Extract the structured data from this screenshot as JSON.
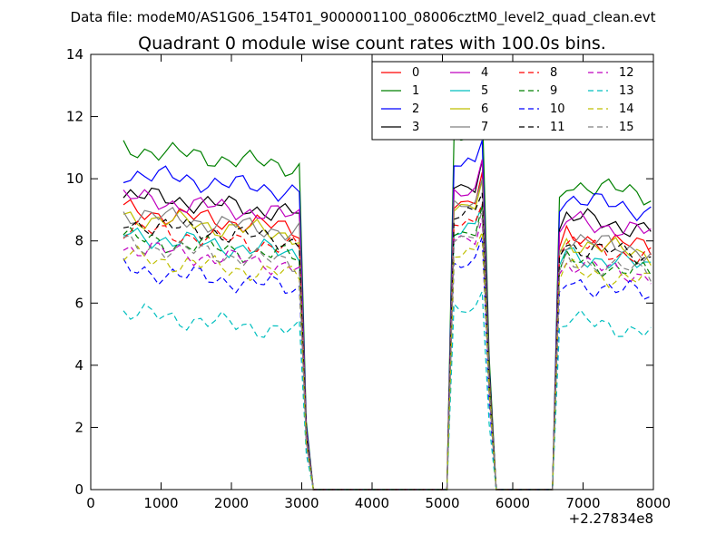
{
  "chart_data": {
    "type": "line",
    "suptitle": "Data file: modeM0/AS1G06_154T01_9000001100_08006cztM0_level2_quad_clean.evt",
    "title": "Quadrant 0 module wise count rates with 100.0s bins.",
    "xlabel": "",
    "ylabel": "",
    "x_offset_label": "+2.27834e8",
    "xlim": [
      0,
      8000
    ],
    "ylim": [
      0,
      14
    ],
    "xticks": [
      0,
      1000,
      2000,
      3000,
      4000,
      5000,
      6000,
      7000,
      8000
    ],
    "yticks": [
      0,
      2,
      4,
      6,
      8,
      10,
      12,
      14
    ],
    "x_tick_labels": [
      "0",
      "1000",
      "2000",
      "3000",
      "4000",
      "5000",
      "6000",
      "7000",
      "8000"
    ],
    "y_tick_labels": [
      "0",
      "2",
      "4",
      "6",
      "8",
      "10",
      "12",
      "14"
    ],
    "grid": false,
    "legend_position": "top-right",
    "legend_columns": 4,
    "x_segments": [
      [
        465,
        565,
        665,
        765,
        865,
        965,
        1065,
        1165,
        1265,
        1365,
        1465,
        1565,
        1665,
        1765,
        1865,
        1965,
        2065,
        2165,
        2265,
        2365,
        2465,
        2565,
        2665,
        2765,
        2865,
        2965,
        3065,
        3165,
        3265,
        3365,
        3465,
        3565,
        3665,
        3765,
        3865,
        3965,
        4065,
        4165,
        4265,
        4365,
        4465,
        4565,
        4665,
        4765,
        4865,
        4965,
        5065,
        5165,
        5265,
        5365,
        5465,
        5565,
        5665,
        5765,
        5865,
        5965,
        6065,
        6165,
        6265,
        6365,
        6465,
        6565,
        6665,
        6765,
        6865,
        6965,
        7065,
        7165,
        7265,
        7365,
        7465,
        7565,
        7665,
        7765,
        7865,
        7965
      ]
    ],
    "series": [
      {
        "name": "0",
        "color": "#ff0000",
        "dash": "solid",
        "base": 9.0,
        "late": 8.2
      },
      {
        "name": "1",
        "color": "#008000",
        "dash": "solid",
        "base": 11.0,
        "late": 9.9
      },
      {
        "name": "2",
        "color": "#0000ff",
        "dash": "solid",
        "base": 10.2,
        "late": 9.4
      },
      {
        "name": "3",
        "color": "#000000",
        "dash": "solid",
        "base": 9.5,
        "late": 8.8
      },
      {
        "name": "4",
        "color": "#bf00bf",
        "dash": "solid",
        "base": 9.4,
        "late": 8.7
      },
      {
        "name": "5",
        "color": "#00bfbf",
        "dash": "solid",
        "base": 8.2,
        "late": 7.6
      },
      {
        "name": "6",
        "color": "#bfbf00",
        "dash": "solid",
        "base": 8.8,
        "late": 8.0
      },
      {
        "name": "7",
        "color": "#808080",
        "dash": "solid",
        "base": 8.9,
        "late": 8.1
      },
      {
        "name": "8",
        "color": "#ff0000",
        "dash": "dashed",
        "base": 8.4,
        "late": 7.9
      },
      {
        "name": "9",
        "color": "#008000",
        "dash": "dashed",
        "base": 8.1,
        "late": 7.4
      },
      {
        "name": "10",
        "color": "#0000ff",
        "dash": "dashed",
        "base": 7.1,
        "late": 6.7
      },
      {
        "name": "11",
        "color": "#000000",
        "dash": "dashed",
        "base": 8.6,
        "late": 7.9
      },
      {
        "name": "12",
        "color": "#bf00bf",
        "dash": "dashed",
        "base": 7.8,
        "late": 7.3
      },
      {
        "name": "13",
        "color": "#00bfbf",
        "dash": "dashed",
        "base": 5.7,
        "late": 5.5
      },
      {
        "name": "14",
        "color": "#bfbf00",
        "dash": "dashed",
        "base": 7.5,
        "late": 7.1
      },
      {
        "name": "15",
        "color": "#808080",
        "dash": "dashed",
        "base": 7.9,
        "late": 7.4
      }
    ]
  }
}
